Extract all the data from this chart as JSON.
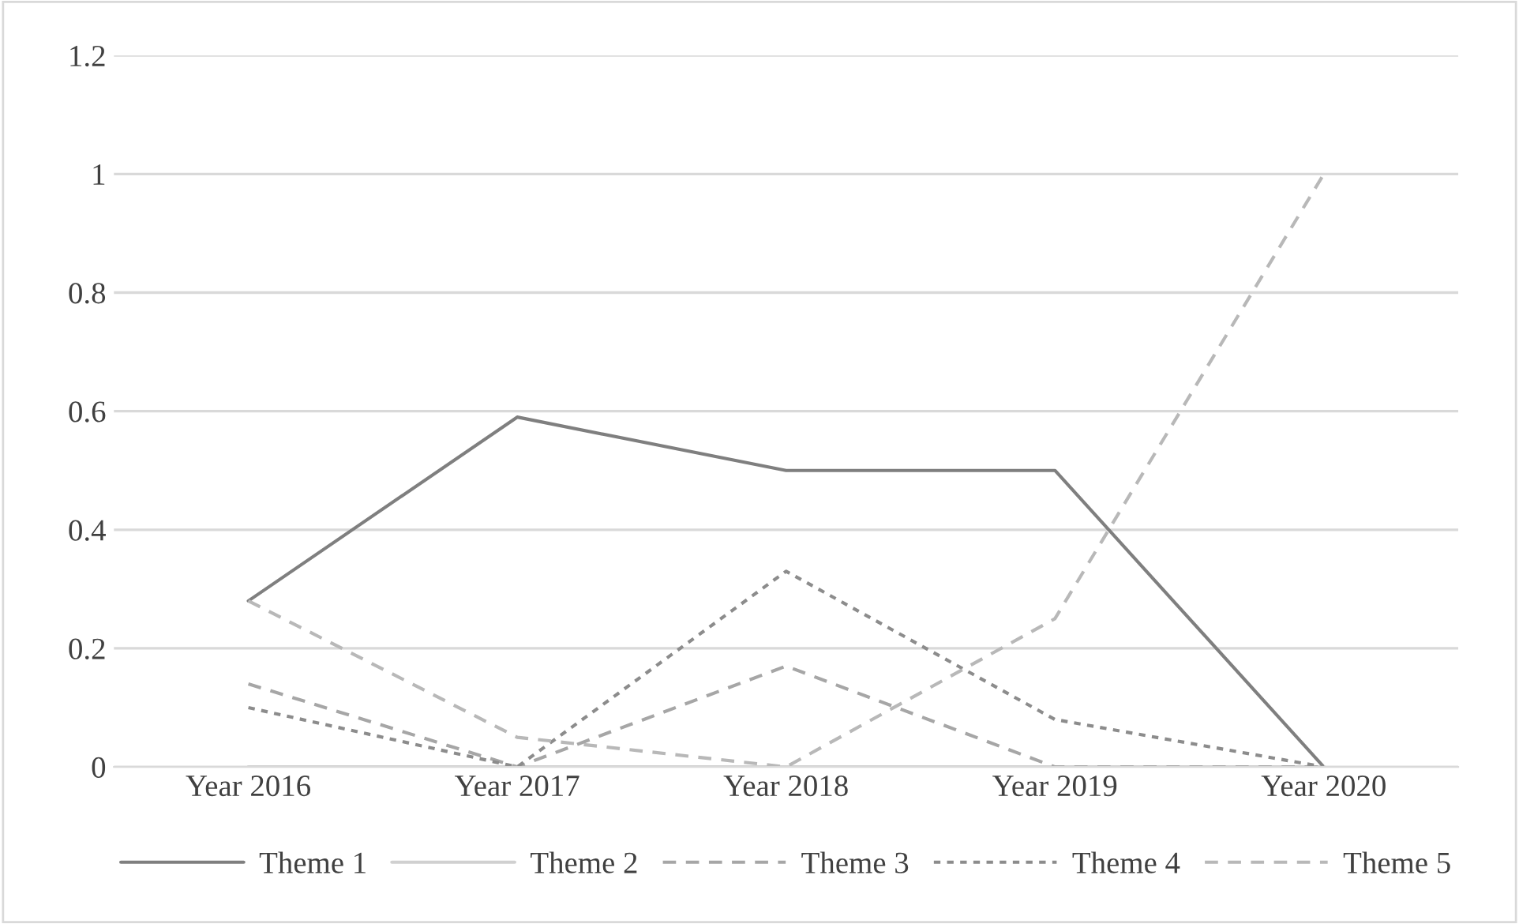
{
  "chart_data": {
    "type": "line",
    "categories": [
      "Year 2016",
      "Year 2017",
      "Year 2018",
      "Year 2019",
      "Year 2020"
    ],
    "series": [
      {
        "name": "Theme 1",
        "color": "#7f7f7f",
        "line_style": "solid",
        "values": [
          0.28,
          0.59,
          0.5,
          0.5,
          0
        ]
      },
      {
        "name": "Theme 2",
        "color": "#d0d0d0",
        "line_style": "solid",
        "values": [
          0,
          0,
          0,
          0,
          0
        ]
      },
      {
        "name": "Theme 3",
        "color": "#a6a6a6",
        "line_style": "dashed",
        "values": [
          0.14,
          0,
          0.17,
          0,
          0
        ]
      },
      {
        "name": "Theme 4",
        "color": "#8c8c8c",
        "line_style": "dotted",
        "values": [
          0.1,
          0,
          0.33,
          0.08,
          0
        ]
      },
      {
        "name": "Theme 5",
        "color": "#b8b8b8",
        "line_style": "dashed",
        "values": [
          0.28,
          0.05,
          0,
          0.25,
          1
        ]
      }
    ],
    "ylim": [
      0,
      1.2
    ],
    "yticks": [
      0,
      0.2,
      0.4,
      0.6,
      0.8,
      1,
      1.2
    ],
    "grid": "y",
    "legend": "bottom",
    "marker": "none"
  }
}
